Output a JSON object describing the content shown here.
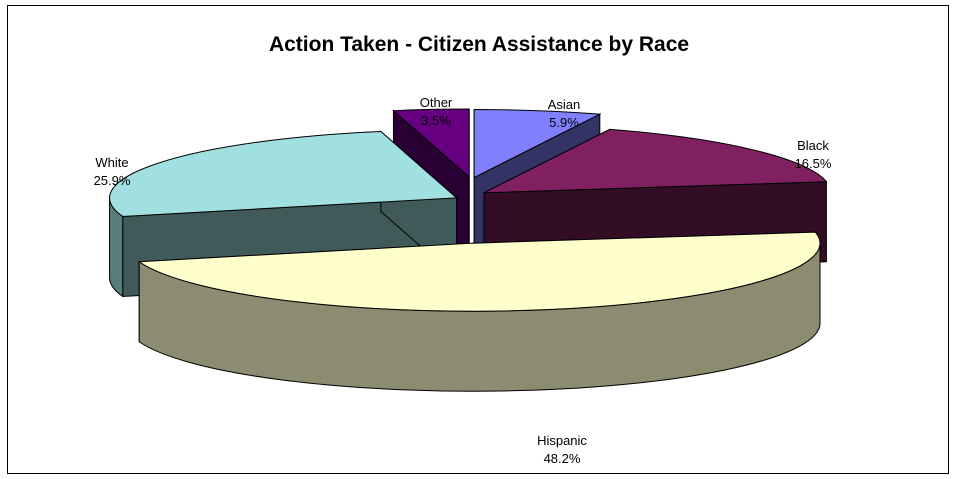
{
  "chart_data": {
    "type": "pie",
    "title": "Action Taken - Citizen Assistance by Race",
    "style": "3d-exploded",
    "slices": [
      {
        "name": "Asian",
        "value": 5.9,
        "label": "5.9%",
        "color": "#8080ff"
      },
      {
        "name": "Black",
        "value": 16.5,
        "label": "16.5%",
        "color": "#802060"
      },
      {
        "name": "Hispanic",
        "value": 48.2,
        "label": "48.2%",
        "color": "#ffffcc"
      },
      {
        "name": "White",
        "value": 25.9,
        "label": "25.9%",
        "color": "#a0e0e0"
      },
      {
        "name": "Other",
        "value": 3.5,
        "label": "3.5%",
        "color": "#660080"
      }
    ]
  }
}
